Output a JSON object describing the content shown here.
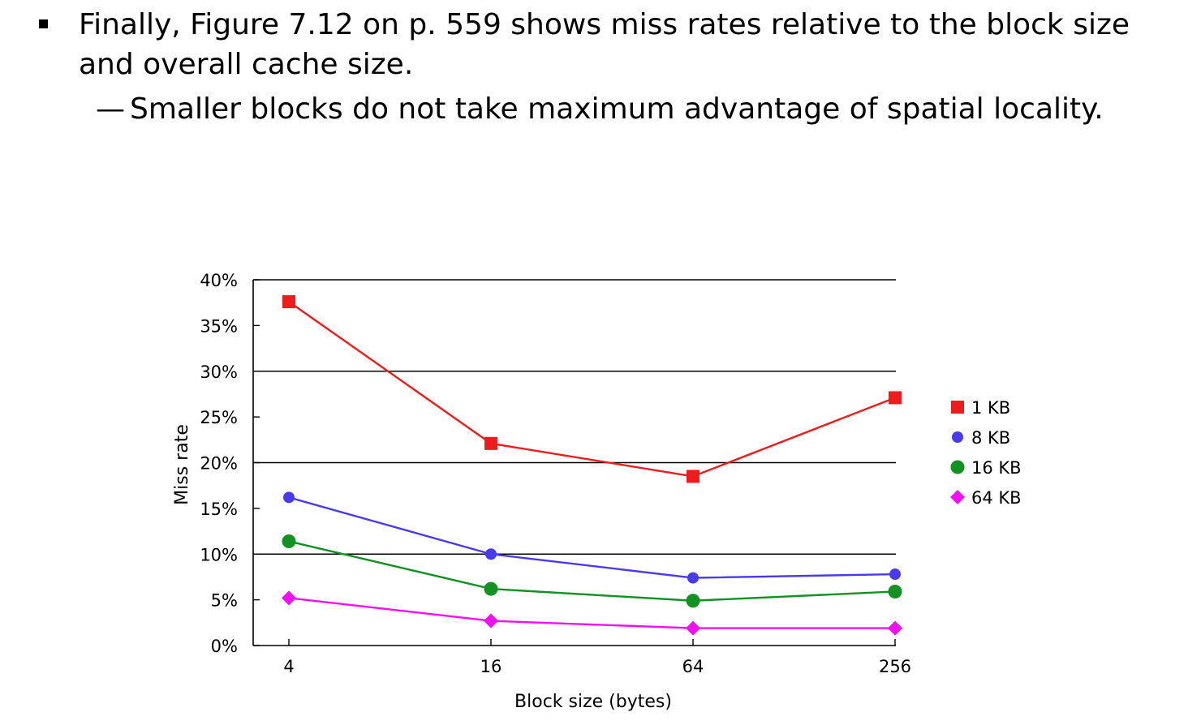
{
  "slide": {
    "bullet_text": "Finally, Figure 7.12 on p. 559 shows miss rates relative to the block size and overall cache size.",
    "sub_dash": "—",
    "sub_bullet_text": "Smaller blocks do not take maximum advantage of spatial locality."
  },
  "chart_data": {
    "type": "line",
    "title": "",
    "xlabel": "Block size (bytes)",
    "ylabel": "Miss rate",
    "categories": [
      "4",
      "16",
      "64",
      "256"
    ],
    "yticks": [
      "0%",
      "5%",
      "10%",
      "15%",
      "20%",
      "25%",
      "30%",
      "35%",
      "40%"
    ],
    "ylim": [
      0,
      40
    ],
    "grid": "horizontal lines at 10%, 20%, 30%, 40%",
    "legend_position": "right",
    "series": [
      {
        "name": "1 KB",
        "values": [
          37.6,
          22.1,
          18.5,
          27.1
        ],
        "color": "#ee1c1c",
        "marker": "square"
      },
      {
        "name": "8 KB",
        "values": [
          16.2,
          10.0,
          7.4,
          7.8
        ],
        "color": "#4a3aef",
        "marker": "circle"
      },
      {
        "name": "16 KB",
        "values": [
          11.4,
          6.2,
          4.9,
          5.9
        ],
        "color": "#119222",
        "marker": "circle-large"
      },
      {
        "name": "64 KB",
        "values": [
          5.2,
          2.7,
          1.9,
          1.9
        ],
        "color": "#f40ef4",
        "marker": "diamond"
      }
    ]
  }
}
